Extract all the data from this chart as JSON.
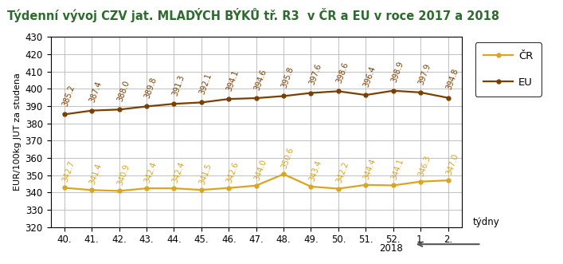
{
  "title": "Týdenní vývoj CZV jat. MLADÝCH BÝKŮ tř. R3  v ČR a EU v roce 2017 a 2018",
  "xlabel_right": "týdny",
  "ylabel": "EUR/100kg JUT za studena",
  "x_labels": [
    "40.",
    "41.",
    "42.",
    "43.",
    "44.",
    "45.",
    "46.",
    "47.",
    "48.",
    "49.",
    "50.",
    "51.",
    "52.",
    "1.",
    "2."
  ],
  "year_label": "2018",
  "cr_values": [
    342.7,
    341.4,
    340.9,
    342.4,
    342.4,
    341.5,
    342.6,
    344.0,
    350.6,
    343.4,
    342.2,
    344.4,
    344.1,
    346.3,
    347.0
  ],
  "eu_values": [
    385.2,
    387.4,
    388.0,
    389.8,
    391.3,
    392.1,
    394.1,
    394.6,
    395.8,
    397.6,
    398.6,
    396.4,
    398.9,
    397.9,
    394.8
  ],
  "cr_color": "#DAA520",
  "eu_color": "#7B3F00",
  "cr_label": "ČR",
  "eu_label": "EU",
  "ylim": [
    320,
    430
  ],
  "yticks": [
    320,
    330,
    340,
    350,
    360,
    370,
    380,
    390,
    400,
    410,
    420,
    430
  ],
  "title_color": "#2F6B2F",
  "grid_color": "#AAAAAA",
  "bg_color": "#ffffff",
  "label_fontsize": 7.0,
  "title_fontsize": 10.5,
  "tick_fontsize": 8.5,
  "ylabel_fontsize": 8.0
}
